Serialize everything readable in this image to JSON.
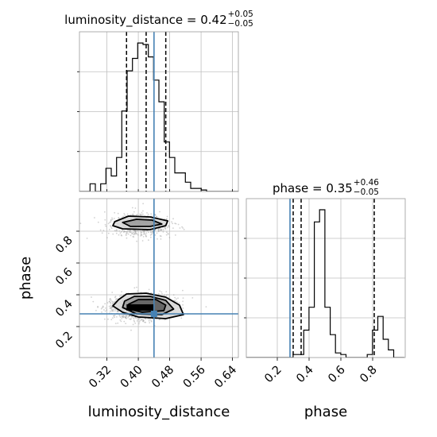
{
  "chart_data": {
    "type": "corner",
    "params": [
      "luminosity_distance",
      "phase"
    ],
    "axis_labels": {
      "x_left": "luminosity_distance",
      "x_right": "phase",
      "y_left": "phase"
    },
    "titles": [
      {
        "name": "luminosity_distance",
        "median": "0.42",
        "plus": "+0.05",
        "minus": "−0.05"
      },
      {
        "name": "phase",
        "median": "0.35",
        "plus": "+0.46",
        "minus": "−0.05"
      }
    ],
    "truth": {
      "luminosity_distance": 0.44,
      "phase": 0.28
    },
    "quantiles": {
      "luminosity_distance": [
        0.37,
        0.42,
        0.47
      ],
      "phase": [
        0.3,
        0.35,
        0.81
      ]
    },
    "ranges": {
      "luminosity_distance": [
        0.25,
        0.655
      ],
      "phase": [
        0.005,
        1.005
      ]
    },
    "ticks": {
      "luminosity_distance": [
        0.32,
        0.4,
        0.48,
        0.56,
        0.64
      ],
      "phase": [
        0.2,
        0.4,
        0.6,
        0.8
      ]
    },
    "tick_labels": {
      "luminosity_distance": [
        "0.32",
        "0.40",
        "0.48",
        "0.56",
        "0.64"
      ],
      "phase": [
        "0.2",
        "0.4",
        "0.6",
        "0.8"
      ]
    },
    "hist_luminosity_distance": {
      "bin_start": 0.25,
      "bin_width": 0.0135,
      "counts": [
        0.0,
        0.0,
        0.05,
        0.0,
        0.05,
        0.15,
        0.1,
        0.22,
        0.52,
        0.78,
        0.86,
        0.96,
        0.95,
        0.87,
        0.72,
        0.58,
        0.32,
        0.22,
        0.12,
        0.12,
        0.06,
        0.02,
        0.02,
        0.01,
        0.0,
        0.0,
        0.0,
        0.0,
        0.0,
        0.0
      ]
    },
    "hist_phase": {
      "bin_start": 0.0,
      "bin_width": 0.0333,
      "counts": [
        0.0,
        0.0,
        0.0,
        0.0,
        0.0,
        0.0,
        0.0,
        0.0,
        0.0,
        0.02,
        0.02,
        0.18,
        0.33,
        0.89,
        0.97,
        0.33,
        0.15,
        0.03,
        0.02,
        0.0,
        0.0,
        0.0,
        0.0,
        0.02,
        0.18,
        0.27,
        0.12,
        0.05,
        0.0,
        0.0
      ]
    },
    "scatter_clusters": [
      {
        "x": 0.4,
        "y": 0.84,
        "sx": 0.032,
        "sy": 0.035,
        "n": 650
      },
      {
        "x": 0.41,
        "y": 0.32,
        "sx": 0.034,
        "sy": 0.038,
        "n": 1300
      }
    ],
    "density_contours": [
      [
        [
          [
            0.34,
            0.86
          ],
          [
            0.375,
            0.895
          ],
          [
            0.43,
            0.89
          ],
          [
            0.475,
            0.865
          ],
          [
            0.47,
            0.835
          ],
          [
            0.43,
            0.81
          ],
          [
            0.36,
            0.815
          ],
          [
            0.335,
            0.835
          ]
        ],
        [
          [
            0.36,
            0.855
          ],
          [
            0.395,
            0.875
          ],
          [
            0.435,
            0.87
          ],
          [
            0.46,
            0.845
          ],
          [
            0.43,
            0.83
          ],
          [
            0.38,
            0.83
          ]
        ]
      ],
      [
        [
          [
            0.35,
            0.37
          ],
          [
            0.37,
            0.405
          ],
          [
            0.42,
            0.41
          ],
          [
            0.47,
            0.385
          ],
          [
            0.505,
            0.335
          ],
          [
            0.515,
            0.275
          ],
          [
            0.47,
            0.25
          ],
          [
            0.4,
            0.26
          ],
          [
            0.36,
            0.29
          ],
          [
            0.335,
            0.33
          ]
        ],
        [
          [
            0.365,
            0.36
          ],
          [
            0.39,
            0.39
          ],
          [
            0.43,
            0.39
          ],
          [
            0.47,
            0.365
          ],
          [
            0.49,
            0.31
          ],
          [
            0.46,
            0.275
          ],
          [
            0.395,
            0.28
          ],
          [
            0.36,
            0.32
          ]
        ],
        [
          [
            0.375,
            0.34
          ],
          [
            0.4,
            0.37
          ],
          [
            0.445,
            0.37
          ],
          [
            0.47,
            0.335
          ],
          [
            0.465,
            0.3
          ],
          [
            0.41,
            0.29
          ],
          [
            0.375,
            0.31
          ]
        ]
      ]
    ],
    "density_fill_color": "#7a7a7a",
    "density_core": {
      "x": [
        0.37,
        0.44
      ],
      "y": [
        0.3,
        0.34
      ],
      "color": "#000000"
    },
    "colors": {
      "truth": "#4682b4",
      "hist": "#000000",
      "quantile": "#000000",
      "grid": "#bfbfbf",
      "scatter": "#9a9a9a",
      "contour": "#000000"
    },
    "grid": true
  }
}
